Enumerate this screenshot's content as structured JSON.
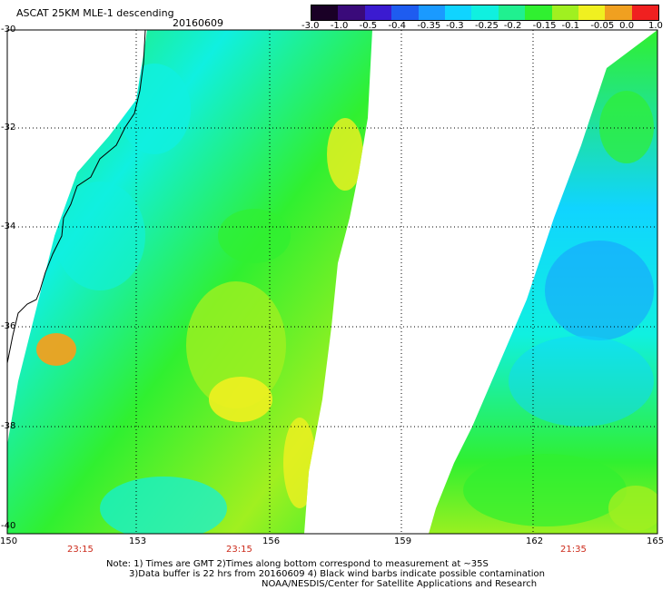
{
  "header": {
    "title": "ASCAT 25KM MLE-1 descending",
    "date": "20160609"
  },
  "colorbar": {
    "labels": [
      "-3.0",
      "-1.0",
      "-0.5",
      "-0.4",
      "-0.35",
      "-0.3",
      "-0.25",
      "-0.2",
      "-0.15",
      "-0.1",
      "-0.05",
      "0.0",
      "1.0"
    ],
    "colors": [
      "#1a0026",
      "#3a0a7a",
      "#3b1bd0",
      "#1e5cf0",
      "#1a9aff",
      "#10d4ff",
      "#10f0e0",
      "#20f090",
      "#30f030",
      "#a0f020",
      "#f0f020",
      "#f0a020",
      "#f02020"
    ]
  },
  "axes": {
    "lat_labels": [
      "-30",
      "-32",
      "-34",
      "-36",
      "-38",
      "-40"
    ],
    "lon_labels": [
      "150",
      "153",
      "156",
      "159",
      "162",
      "165"
    ]
  },
  "pass_times": [
    "23:15",
    "23:15",
    "21:35"
  ],
  "notes": {
    "line1": "Note: 1) Times are GMT 2)Times along bottom correspond to measurement at ~35S",
    "line2": "3)Data buffer is 22 hrs from 20160609 4) Black wind barbs indicate possible contamination",
    "line3": "NOAA/NESDIS/Center for Satellite Applications and Research"
  },
  "map_colors": {
    "green": "#30f030",
    "yellowgreen": "#a0f020",
    "yellow": "#f0f020",
    "cyan": "#10f0e0",
    "lightblue": "#10d4ff",
    "blue": "#1a9aff",
    "orange": "#f0a020"
  }
}
